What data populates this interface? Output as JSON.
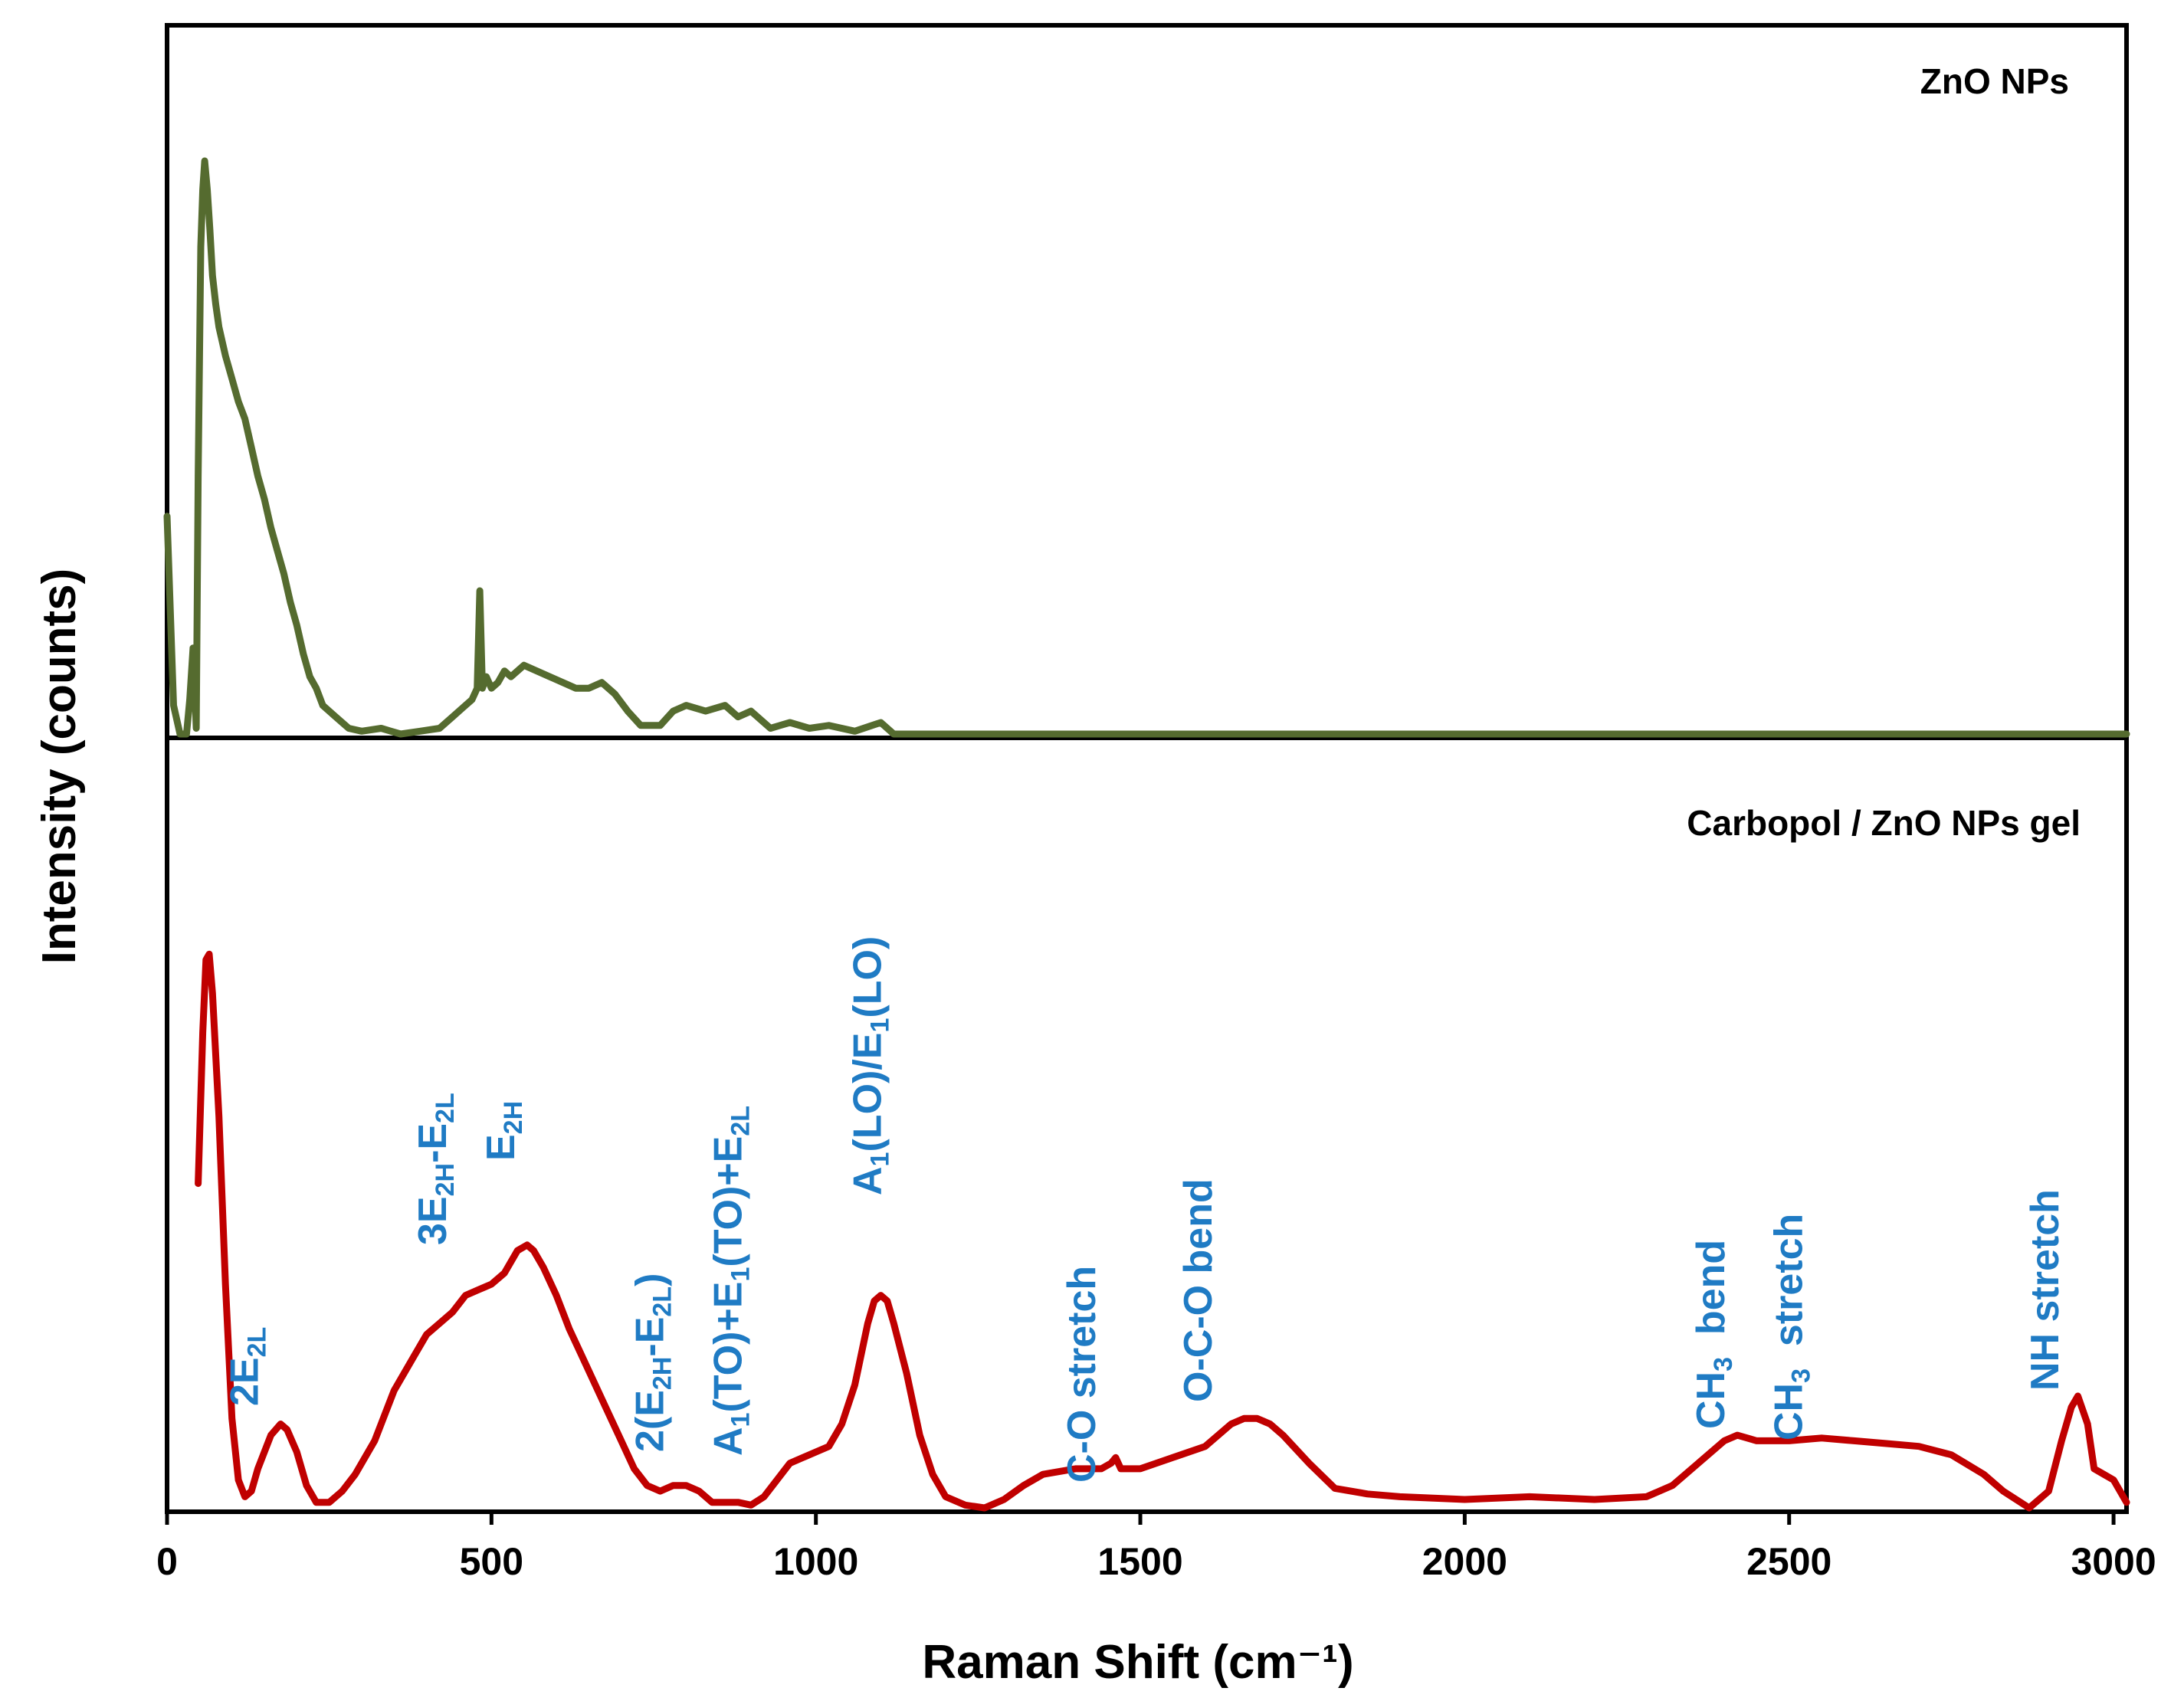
{
  "chart_data": {
    "type": "line",
    "xlabel": "Raman Shift (cm⁻¹)",
    "ylabel": "Intensity (counts)",
    "xlim": [
      0,
      3020
    ],
    "x_ticks": [
      0,
      500,
      1000,
      1500,
      2000,
      2500,
      3000
    ],
    "grid": false,
    "colors": {
      "zno": "#556B2F",
      "gel": "#C00000",
      "annotation": "#1F7BC4",
      "axis": "#000000"
    },
    "panels": [
      {
        "label": "ZnO NPs",
        "series": [
          {
            "name": "ZnO NPs",
            "x": [
              0,
              10,
              20,
              30,
              35,
              40,
              45,
              48,
              52,
              55,
              58,
              62,
              66,
              70,
              75,
              80,
              90,
              100,
              110,
              120,
              130,
              140,
              150,
              160,
              170,
              180,
              190,
              200,
              210,
              220,
              230,
              240,
              260,
              280,
              300,
              330,
              360,
              390,
              420,
              440,
              455,
              470,
              478,
              482,
              486,
              492,
              500,
              510,
              520,
              530,
              550,
              570,
              590,
              610,
              630,
              650,
              670,
              690,
              710,
              730,
              760,
              780,
              800,
              830,
              860,
              880,
              900,
              930,
              960,
              990,
              1020,
              1060,
              1100,
              1120,
              1200,
              1600,
              2000,
              2400,
              2800,
              3020
            ],
            "y": [
              0.38,
              0.05,
              0.0,
              0.0,
              0.06,
              0.15,
              0.01,
              0.45,
              0.85,
              0.95,
              1.0,
              0.95,
              0.88,
              0.8,
              0.75,
              0.71,
              0.66,
              0.62,
              0.58,
              0.55,
              0.5,
              0.45,
              0.41,
              0.36,
              0.32,
              0.28,
              0.23,
              0.19,
              0.14,
              0.1,
              0.08,
              0.05,
              0.03,
              0.01,
              0.005,
              0.01,
              0.0,
              0.005,
              0.01,
              0.03,
              0.045,
              0.06,
              0.08,
              0.25,
              0.08,
              0.1,
              0.08,
              0.09,
              0.11,
              0.1,
              0.12,
              0.11,
              0.1,
              0.09,
              0.08,
              0.08,
              0.09,
              0.07,
              0.04,
              0.015,
              0.015,
              0.04,
              0.05,
              0.04,
              0.05,
              0.03,
              0.04,
              0.01,
              0.02,
              0.01,
              0.015,
              0.005,
              0.02,
              0.0,
              0.0,
              0.0,
              0.0,
              0.0,
              0.0,
              0.0
            ]
          }
        ]
      },
      {
        "label": "Carbopol / ZnO NPs gel",
        "series": [
          {
            "name": "Carbopol / ZnO NPs gel",
            "x": [
              48,
              55,
              60,
              65,
              70,
              80,
              90,
              100,
              110,
              120,
              130,
              140,
              160,
              175,
              185,
              200,
              215,
              230,
              250,
              270,
              290,
              320,
              350,
              380,
              400,
              420,
              440,
              460,
              480,
              500,
              520,
              540,
              555,
              565,
              580,
              600,
              620,
              640,
              660,
              680,
              700,
              720,
              740,
              760,
              780,
              800,
              820,
              840,
              860,
              880,
              900,
              920,
              940,
              960,
              980,
              1000,
              1020,
              1040,
              1060,
              1080,
              1090,
              1100,
              1110,
              1120,
              1140,
              1160,
              1180,
              1200,
              1230,
              1260,
              1290,
              1320,
              1350,
              1400,
              1440,
              1455,
              1462,
              1470,
              1500,
              1550,
              1600,
              1640,
              1660,
              1680,
              1700,
              1720,
              1760,
              1800,
              1850,
              1900,
              2000,
              2100,
              2200,
              2280,
              2320,
              2360,
              2400,
              2420,
              2450,
              2500,
              2550,
              2600,
              2650,
              2700,
              2750,
              2800,
              2830,
              2870,
              2900,
              2920,
              2935,
              2945,
              2960,
              2970,
              2985,
              3000,
              3020
            ],
            "y": [
              0.58,
              0.85,
              0.98,
              0.99,
              0.92,
              0.7,
              0.4,
              0.16,
              0.05,
              0.02,
              0.03,
              0.07,
              0.13,
              0.15,
              0.14,
              0.1,
              0.04,
              0.01,
              0.01,
              0.03,
              0.06,
              0.12,
              0.21,
              0.27,
              0.31,
              0.33,
              0.35,
              0.38,
              0.39,
              0.4,
              0.42,
              0.46,
              0.47,
              0.46,
              0.43,
              0.38,
              0.32,
              0.27,
              0.22,
              0.17,
              0.12,
              0.07,
              0.04,
              0.03,
              0.04,
              0.04,
              0.03,
              0.01,
              0.01,
              0.01,
              0.005,
              0.02,
              0.05,
              0.08,
              0.09,
              0.1,
              0.11,
              0.15,
              0.22,
              0.33,
              0.37,
              0.38,
              0.37,
              0.33,
              0.24,
              0.13,
              0.06,
              0.02,
              0.005,
              0.0,
              0.015,
              0.04,
              0.06,
              0.07,
              0.07,
              0.08,
              0.09,
              0.07,
              0.07,
              0.09,
              0.11,
              0.15,
              0.16,
              0.16,
              0.15,
              0.13,
              0.08,
              0.035,
              0.025,
              0.02,
              0.015,
              0.02,
              0.015,
              0.02,
              0.04,
              0.08,
              0.12,
              0.13,
              0.12,
              0.12,
              0.125,
              0.12,
              0.115,
              0.11,
              0.095,
              0.06,
              0.03,
              0.0,
              0.03,
              0.12,
              0.18,
              0.2,
              0.15,
              0.07,
              0.06,
              0.05,
              0.01
            ]
          }
        ],
        "annotations": [
          {
            "id": "2e2l",
            "x": 140,
            "pieces": [
              [
                "2E",
                ""
              ],
              [
                "2L",
                "sub"
              ]
            ]
          },
          {
            "id": "3e2h-e2l",
            "x": 430,
            "pieces": [
              [
                "3E",
                ""
              ],
              [
                "2H",
                "sub"
              ],
              [
                "-E",
                ""
              ],
              [
                "2L",
                "sub"
              ]
            ]
          },
          {
            "id": "e2h",
            "x": 535,
            "pieces": [
              [
                "E",
                ""
              ],
              [
                "2H",
                "sub"
              ]
            ]
          },
          {
            "id": "2-e2h-e2l",
            "x": 765,
            "pieces": [
              [
                "2(E",
                ""
              ],
              [
                "2H",
                "sub"
              ],
              [
                "-E",
                ""
              ],
              [
                "2L",
                "sub"
              ],
              [
                ")",
                ""
              ]
            ]
          },
          {
            "id": "a1to-e1to-e2l",
            "x": 885,
            "pieces": [
              [
                "A",
                ""
              ],
              [
                "1",
                "sub"
              ],
              [
                "(TO)+E",
                ""
              ],
              [
                "1",
                "sub"
              ],
              [
                "(TO)+E",
                ""
              ],
              [
                "2L",
                "sub"
              ]
            ]
          },
          {
            "id": "a1lo-e1lo",
            "x": 1100,
            "pieces": [
              [
                "A",
                ""
              ],
              [
                "1",
                "sub"
              ],
              [
                "(LO)/E",
                ""
              ],
              [
                "1",
                "sub"
              ],
              [
                "(LO)",
                ""
              ]
            ]
          },
          {
            "id": "c-o-stretch",
            "x": 1430,
            "pieces": [
              [
                "C-O stretch",
                ""
              ]
            ]
          },
          {
            "id": "o-c-o-bend",
            "x": 1610,
            "pieces": [
              [
                "O-C-O bend",
                ""
              ]
            ]
          },
          {
            "id": "ch3-bend",
            "x": 2400,
            "pieces": [
              [
                "CH",
                ""
              ],
              [
                "3",
                "sub"
              ],
              [
                "  bend",
                ""
              ]
            ]
          },
          {
            "id": "ch3-stretch",
            "x": 2520,
            "pieces": [
              [
                "CH",
                ""
              ],
              [
                "3",
                "sub"
              ],
              [
                "  stretch",
                ""
              ]
            ]
          },
          {
            "id": "nh-stretch",
            "x": 2915,
            "pieces": [
              [
                "NH stretch",
                ""
              ]
            ]
          }
        ]
      }
    ]
  }
}
